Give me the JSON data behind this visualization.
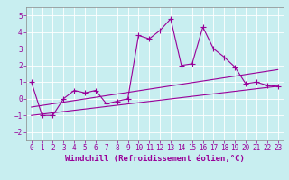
{
  "xlabel": "Windchill (Refroidissement éolien,°C)",
  "background_color": "#c8eef0",
  "grid_color": "#ffffff",
  "line_color": "#990099",
  "xlim": [
    -0.5,
    23.5
  ],
  "ylim": [
    -2.5,
    5.5
  ],
  "yticks": [
    -2,
    -1,
    0,
    1,
    2,
    3,
    4,
    5
  ],
  "xticks": [
    0,
    1,
    2,
    3,
    4,
    5,
    6,
    7,
    8,
    9,
    10,
    11,
    12,
    13,
    14,
    15,
    16,
    17,
    18,
    19,
    20,
    21,
    22,
    23
  ],
  "series1_x": [
    0,
    1,
    2,
    3,
    4,
    5,
    6,
    7,
    8,
    9,
    10,
    11,
    12,
    13,
    14,
    15,
    16,
    17,
    18,
    19,
    20,
    21,
    22,
    23
  ],
  "series1_y": [
    1.0,
    -1.0,
    -1.0,
    0.0,
    0.5,
    0.35,
    0.5,
    -0.3,
    -0.15,
    0.0,
    3.8,
    3.6,
    4.1,
    4.8,
    2.0,
    2.1,
    4.3,
    3.0,
    2.5,
    1.9,
    0.9,
    1.0,
    0.8,
    0.75
  ],
  "series2_x": [
    0,
    23
  ],
  "series2_y": [
    -1.0,
    0.75
  ],
  "series3_x": [
    0,
    23
  ],
  "series3_y": [
    -0.5,
    1.75
  ],
  "marker": "+",
  "markersize": 4,
  "linewidth": 0.8,
  "tick_fontsize": 5.5,
  "label_fontsize": 6.5
}
